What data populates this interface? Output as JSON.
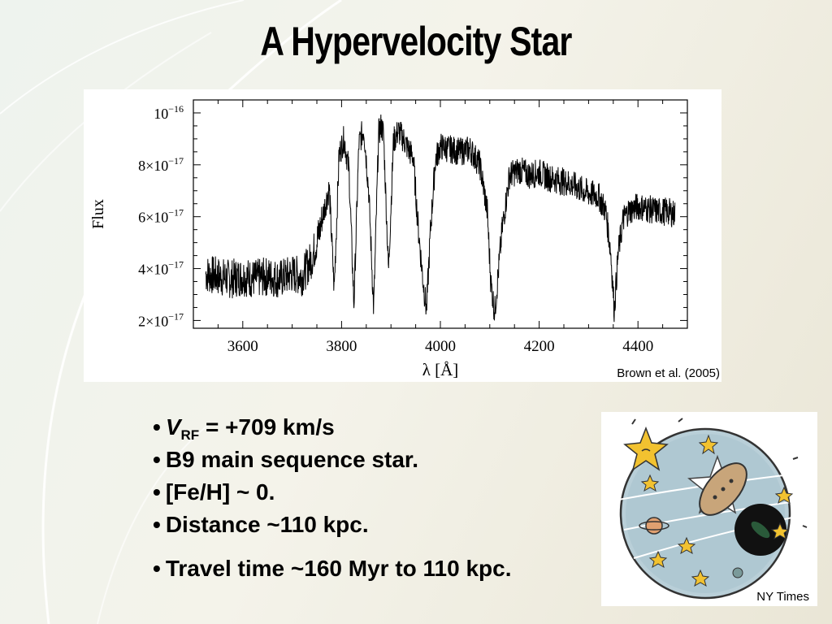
{
  "slide": {
    "title": "A Hypervelocity Star",
    "chart_credit": "Brown et al. (2005)",
    "image_credit": "NY Times",
    "bullets": {
      "b1_symbol": "V",
      "b1_subscript": "RF",
      "b1_rest": " = +709 km/s",
      "b2": "B9 main sequence star.",
      "b3": "[Fe/H] ~ 0.",
      "b4": "Distance ~110 kpc.",
      "b5": "Travel time ~160 Myr to 110 kpc."
    },
    "bullet_glyph": "•"
  },
  "chart_data": {
    "type": "line",
    "title": "",
    "xlabel": "λ [Å]",
    "ylabel": "Flux",
    "xlim": [
      3500,
      4500
    ],
    "ylim": [
      1.7e-17,
      1.05e-16
    ],
    "x_ticks": [
      3600,
      3800,
      4000,
      4200,
      4400
    ],
    "y_ticks": [
      2e-17,
      4e-17,
      6e-17,
      8e-17,
      1e-16
    ],
    "y_tick_labels": [
      {
        "mantissa": "2×10",
        "exp": "−17"
      },
      {
        "mantissa": "4×10",
        "exp": "−17"
      },
      {
        "mantissa": "6×10",
        "exp": "−17"
      },
      {
        "mantissa": "8×10",
        "exp": "−17"
      },
      {
        "mantissa": "10",
        "exp": "−16"
      }
    ],
    "grid": false,
    "series": [
      {
        "x": [
          3525,
          3550,
          3575,
          3600,
          3625,
          3650,
          3675,
          3700,
          3720,
          3740,
          3755,
          3765,
          3775,
          3785,
          3795,
          3805,
          3815,
          3825,
          3835,
          3845,
          3855,
          3865,
          3875,
          3880,
          3885,
          3895,
          3905,
          3915,
          3925,
          3935,
          3945,
          3955,
          3965,
          3972,
          3980,
          3990,
          4000,
          4020,
          4040,
          4060,
          4080,
          4095,
          4102,
          4110,
          4125,
          4140,
          4160,
          4180,
          4200,
          4220,
          4240,
          4260,
          4280,
          4300,
          4320,
          4335,
          4345,
          4352,
          4360,
          4370,
          4380,
          4400,
          4420,
          4440,
          4460,
          4475
        ],
        "y": [
          3.8e-17,
          3.7e-17,
          3.6e-17,
          3.7e-17,
          3.6e-17,
          3.7e-17,
          3.6e-17,
          3.8e-17,
          3.7e-17,
          4.4e-17,
          5.4e-17,
          6.3e-17,
          7.1e-17,
          3.2e-17,
          8.4e-17,
          9e-17,
          7.8e-17,
          2.6e-17,
          8.8e-17,
          9.4e-17,
          7e-17,
          2.4e-17,
          9.2e-17,
          9.5e-17,
          9.2e-17,
          3.9e-17,
          8.9e-17,
          9.3e-17,
          9e-17,
          8.6e-17,
          8.3e-17,
          5.6e-17,
          3.5e-17,
          2.4e-17,
          5.5e-17,
          8.2e-17,
          8.7e-17,
          8.6e-17,
          8.5e-17,
          8.6e-17,
          8e-17,
          6.2e-17,
          3.5e-17,
          2.3e-17,
          5.5e-17,
          7.6e-17,
          7.8e-17,
          7.6e-17,
          7.7e-17,
          7.5e-17,
          7.4e-17,
          7.3e-17,
          7.1e-17,
          6.9e-17,
          6.8e-17,
          6.2e-17,
          4.6e-17,
          2.4e-17,
          4.6e-17,
          5.9e-17,
          6.2e-17,
          6.4e-17,
          6.3e-17,
          6.2e-17,
          6.2e-17,
          6.1e-17
        ]
      }
    ]
  }
}
